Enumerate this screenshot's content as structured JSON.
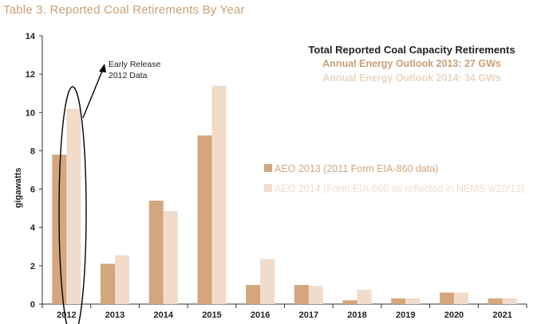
{
  "page": {
    "title": "Table 3. Reported Coal Retirements By Year"
  },
  "summary": {
    "title": "Total Reported Coal Capacity Retirements",
    "line1": "Annual Energy Outlook 2013: 27 GWs",
    "line2": "Annual Energy Outlook 2014: 34 GWs"
  },
  "annotation": {
    "line1": "Early Release",
    "line2": "2012 Data"
  },
  "chart_data": {
    "type": "bar",
    "title": "Reported Coal Retirements By Year",
    "xlabel": "",
    "ylabel": "gigawatts",
    "ylim": [
      0,
      14
    ],
    "yticks": [
      0,
      2,
      4,
      6,
      8,
      10,
      12,
      14
    ],
    "grid": false,
    "legend_position": "center-right",
    "categories": [
      "2012",
      "2013",
      "2014",
      "2015",
      "2016",
      "2017",
      "2018",
      "2019",
      "2020",
      "2021"
    ],
    "series": [
      {
        "name": "AEO 2013 (2011 Form EIA-860 data)",
        "color": "#d3a67e",
        "values": [
          7.8,
          2.1,
          5.4,
          8.8,
          1.0,
          1.0,
          0.2,
          0.3,
          0.6,
          0.3
        ]
      },
      {
        "name": "AEO 2014 (Form EIA-860 as reflected in NEMS 9/20/13)",
        "color": "#f1dccb",
        "values": [
          10.2,
          2.55,
          4.85,
          11.4,
          2.35,
          0.95,
          0.75,
          0.3,
          0.6,
          0.3
        ]
      }
    ]
  },
  "colors": {
    "title": "#c9a07a",
    "aeo2013": "#d3a67e",
    "aeo2014": "#f1dccb",
    "summary_line1": "#c9a07a",
    "summary_line2": "#ebd5c2"
  }
}
